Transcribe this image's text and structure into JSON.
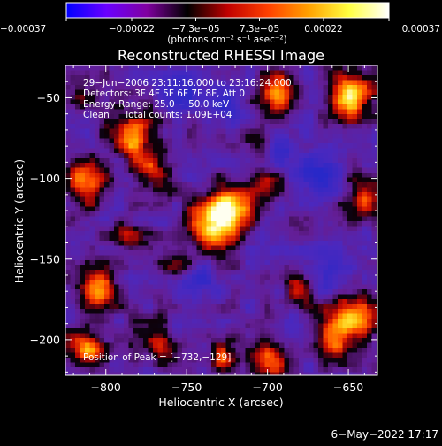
{
  "chart_data": {
    "type": "heatmap",
    "title": "Reconstructed RHESSI Image",
    "xlabel": "Heliocentric X (arcsec)",
    "ylabel": "Heliocentric Y (arcsec)",
    "xlim": [
      -825,
      -632
    ],
    "ylim": [
      -222,
      -30
    ],
    "x_ticks": [
      -800,
      -750,
      -700,
      -650
    ],
    "x_tick_labels": [
      "−800",
      "−750",
      "−700",
      "−650"
    ],
    "y_ticks": [
      -50,
      -100,
      -150,
      -200
    ],
    "y_tick_labels": [
      "−50",
      "−100",
      "−150",
      "−200"
    ],
    "colorbar": {
      "range": [
        -0.00037,
        0.00037
      ],
      "tick_values": [
        -0.00037,
        -0.00022,
        -7.3e-05,
        7.3e-05,
        0.00022,
        0.00037
      ],
      "tick_labels": [
        "−0.00037",
        "−0.00022",
        "−7.3e−05",
        "7.3e−05",
        "0.00022",
        "0.00037"
      ],
      "units_label": "(photons cm⁻² s⁻¹ asec⁻²)",
      "colormap": [
        "#0000ff",
        "#6a00ff",
        "#8000a0",
        "#000000",
        "#c00000",
        "#ff4000",
        "#ffa000",
        "#ffff40",
        "#ffffff"
      ]
    },
    "annotations": [
      "29−Jun−2006 23:11:16.000 to 23:16:24.000",
      "Detectors: 3F 4F 5F 6F 7F 8F, Att 0",
      "Energy Range: 25.0 − 50.0 keV",
      "Clean     Total counts: 1.09E+04"
    ],
    "peak_annotation": "Position of Peak = [−732,−129]",
    "peak_position": [
      -732,
      -129
    ],
    "sources": [
      {
        "x": -732,
        "y": -128,
        "amplitude": 1.0,
        "sigma": 11
      },
      {
        "x": -722,
        "y": -117,
        "amplitude": 0.75,
        "sigma": 8
      },
      {
        "x": -783,
        "y": -72,
        "amplitude": 0.82,
        "sigma": 10
      },
      {
        "x": -772,
        "y": -95,
        "amplitude": 0.55,
        "sigma": 8
      },
      {
        "x": -812,
        "y": -102,
        "amplitude": 0.7,
        "sigma": 9
      },
      {
        "x": -805,
        "y": -170,
        "amplitude": 0.7,
        "sigma": 9
      },
      {
        "x": -813,
        "y": -205,
        "amplitude": 0.72,
        "sigma": 9
      },
      {
        "x": -768,
        "y": -202,
        "amplitude": 0.55,
        "sigma": 8
      },
      {
        "x": -755,
        "y": -155,
        "amplitude": 0.55,
        "sigma": 7
      },
      {
        "x": -700,
        "y": -214,
        "amplitude": 0.7,
        "sigma": 8
      },
      {
        "x": -728,
        "y": -210,
        "amplitude": 0.55,
        "sigma": 7
      },
      {
        "x": -648,
        "y": -185,
        "amplitude": 0.9,
        "sigma": 10
      },
      {
        "x": -660,
        "y": -200,
        "amplitude": 0.65,
        "sigma": 8
      },
      {
        "x": -648,
        "y": -48,
        "amplitude": 0.9,
        "sigma": 10
      },
      {
        "x": -640,
        "y": -112,
        "amplitude": 0.65,
        "sigma": 9
      },
      {
        "x": -693,
        "y": -48,
        "amplitude": 0.72,
        "sigma": 9
      },
      {
        "x": -700,
        "y": -102,
        "amplitude": 0.6,
        "sigma": 9
      },
      {
        "x": -705,
        "y": -80,
        "amplitude": 0.5,
        "sigma": 7
      },
      {
        "x": -680,
        "y": -170,
        "amplitude": 0.45,
        "sigma": 7
      },
      {
        "x": -786,
        "y": -136,
        "amplitude": 0.45,
        "sigma": 6
      },
      {
        "x": -815,
        "y": -48,
        "amplitude": 0.45,
        "sigma": 6
      }
    ],
    "blue_regions": [
      {
        "x": -697,
        "y": -88,
        "sigma": 12
      },
      {
        "x": -745,
        "y": -165,
        "sigma": 9
      },
      {
        "x": -660,
        "y": -162,
        "sigma": 8
      },
      {
        "x": -755,
        "y": -48,
        "sigma": 8
      },
      {
        "x": -665,
        "y": -95,
        "sigma": 9
      },
      {
        "x": -725,
        "y": -55,
        "sigma": 8
      }
    ]
  },
  "footer": {
    "timestamp": "6−May−2022 17:17"
  }
}
